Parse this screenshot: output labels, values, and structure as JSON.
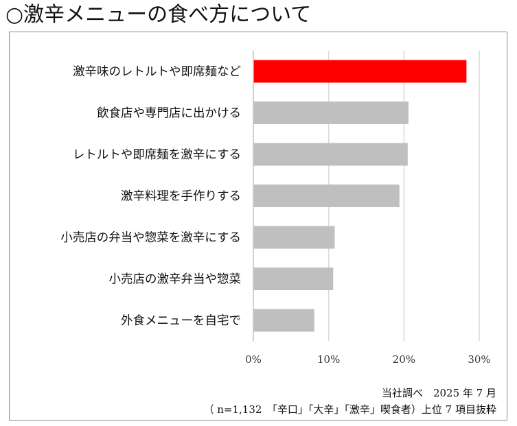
{
  "title": "○激辛メニューの食べ方について",
  "chart_data": {
    "type": "bar",
    "orientation": "horizontal",
    "categories": [
      "激辛味のレトルトや即席麺など",
      "飲食店や専門店に出かける",
      "レトルトや即席麺を激辛にする",
      "激辛料理を手作りする",
      "小売店の弁当や惣菜を激辛にする",
      "小売店の激辛弁当や惣菜",
      "外食メニューを自宅で"
    ],
    "values": [
      28.3,
      20.6,
      20.5,
      19.4,
      10.8,
      10.6,
      8.1
    ],
    "highlight_index": 0,
    "colors": {
      "highlight": "#ff0000",
      "bar": "#bfbfbf",
      "grid": "#d9d9d9"
    },
    "xlim": [
      0,
      30
    ],
    "xticks": [
      "0%",
      "10%",
      "20%",
      "30%"
    ],
    "grid": true,
    "legend": "none",
    "xlabel": "",
    "ylabel": ""
  },
  "footer": {
    "source": "当社調べ　2025 年 7 月",
    "note": "（ n=1,132　「辛口」「大辛」「激辛」喫食者）上位 7 項目抜粋"
  }
}
